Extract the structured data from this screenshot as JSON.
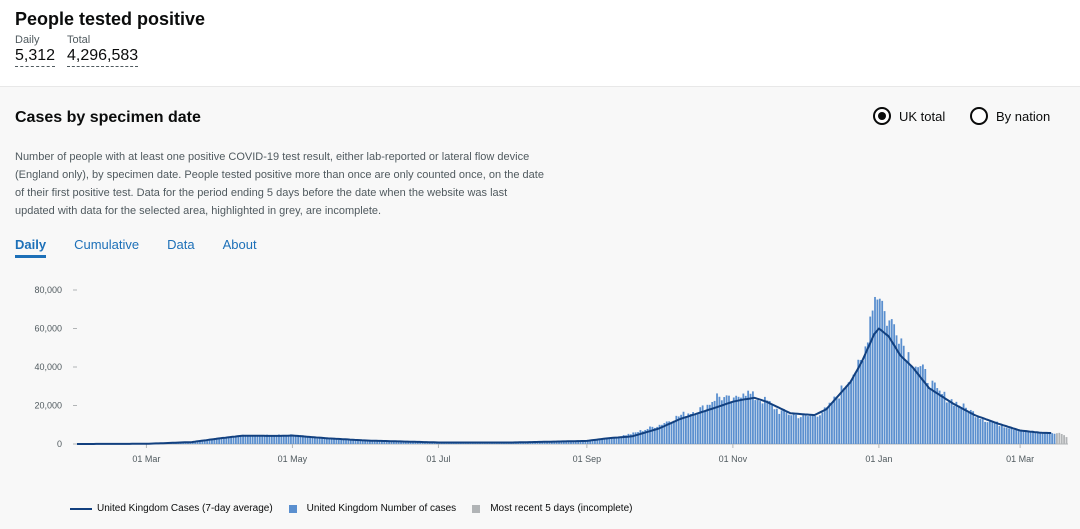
{
  "headline": {
    "title": "People tested positive",
    "daily_label": "Daily",
    "daily_value": "5,312",
    "total_label": "Total",
    "total_value": "4,296,583"
  },
  "card": {
    "title": "Cases by specimen date",
    "radios": [
      {
        "label": "UK total",
        "selected": true
      },
      {
        "label": "By nation",
        "selected": false
      }
    ],
    "description": "Number of people with at least one positive COVID-19 test result, either lab-reported or lateral flow device (England only), by specimen date. People tested positive more than once are only counted once, on the date of their first positive test. Data for the period ending 5 days before the date when the website was last updated with data for the selected area, highlighted in grey, are incomplete.",
    "tabs": [
      "Daily",
      "Cumulative",
      "Data",
      "About"
    ],
    "active_tab": "Daily"
  },
  "colors": {
    "bar": "#5a8fcf",
    "line": "#12407f",
    "incomplete": "#b1b4b6",
    "tab": "#1d70b8"
  },
  "chart_data": {
    "type": "bar",
    "x_start": "2020-02-01",
    "x_end": "2021-03-21",
    "ylim": [
      0,
      80000
    ],
    "y_ticks": [
      0,
      20000,
      40000,
      60000,
      80000
    ],
    "y_tick_labels": [
      "0",
      "20,000",
      "40,000",
      "60,000",
      "80,000"
    ],
    "x_ticks": [
      "2020-03-01",
      "2020-05-01",
      "2020-07-01",
      "2020-09-01",
      "2020-11-01",
      "2021-01-01",
      "2021-03-01"
    ],
    "x_tick_labels": [
      "01 Mar",
      "01 May",
      "01 Jul",
      "01 Sep",
      "01 Nov",
      "01 Jan",
      "01 Mar"
    ],
    "series": [
      {
        "name": "United Kingdom Number of cases",
        "points": [
          [
            "2020-02-01",
            0
          ],
          [
            "2020-03-01",
            50
          ],
          [
            "2020-03-15",
            700
          ],
          [
            "2020-03-25",
            1500
          ],
          [
            "2020-04-01",
            3000
          ],
          [
            "2020-04-10",
            4500
          ],
          [
            "2020-04-20",
            4400
          ],
          [
            "2020-05-01",
            4800
          ],
          [
            "2020-05-10",
            3200
          ],
          [
            "2020-05-25",
            2000
          ],
          [
            "2020-06-10",
            1200
          ],
          [
            "2020-07-01",
            800
          ],
          [
            "2020-08-01",
            900
          ],
          [
            "2020-08-20",
            1200
          ],
          [
            "2020-09-01",
            2000
          ],
          [
            "2020-09-10",
            3000
          ],
          [
            "2020-09-20",
            5500
          ],
          [
            "2020-10-01",
            10000
          ],
          [
            "2020-10-10",
            15000
          ],
          [
            "2020-10-20",
            19000
          ],
          [
            "2020-10-25",
            25000
          ],
          [
            "2020-11-01",
            22000
          ],
          [
            "2020-11-05",
            28000
          ],
          [
            "2020-11-10",
            24000
          ],
          [
            "2020-11-15",
            22000
          ],
          [
            "2020-11-20",
            17000
          ],
          [
            "2020-11-30",
            14000
          ],
          [
            "2020-12-05",
            15000
          ],
          [
            "2020-12-10",
            18000
          ],
          [
            "2020-12-15",
            26000
          ],
          [
            "2020-12-20",
            36000
          ],
          [
            "2020-12-25",
            42000
          ],
          [
            "2020-12-29",
            75000
          ],
          [
            "2021-01-01",
            80000
          ],
          [
            "2021-01-03",
            68000
          ],
          [
            "2021-01-05",
            63000
          ],
          [
            "2021-01-08",
            62000
          ],
          [
            "2021-01-12",
            48000
          ],
          [
            "2021-01-16",
            42000
          ],
          [
            "2021-01-20",
            36000
          ],
          [
            "2021-01-25",
            27000
          ],
          [
            "2021-02-01",
            22000
          ],
          [
            "2021-02-08",
            17000
          ],
          [
            "2021-02-15",
            12000
          ],
          [
            "2021-02-22",
            9500
          ],
          [
            "2021-03-01",
            7000
          ],
          [
            "2021-03-08",
            6000
          ],
          [
            "2021-03-15",
            5400
          ]
        ]
      },
      {
        "name": "United Kingdom Cases (7-day average)",
        "points": [
          [
            "2020-02-01",
            0
          ],
          [
            "2020-03-01",
            100
          ],
          [
            "2020-03-20",
            1000
          ],
          [
            "2020-04-01",
            3000
          ],
          [
            "2020-04-10",
            4300
          ],
          [
            "2020-04-25",
            4200
          ],
          [
            "2020-05-01",
            4400
          ],
          [
            "2020-05-15",
            3000
          ],
          [
            "2020-06-01",
            1800
          ],
          [
            "2020-07-01",
            800
          ],
          [
            "2020-08-01",
            800
          ],
          [
            "2020-09-01",
            1600
          ],
          [
            "2020-09-10",
            3000
          ],
          [
            "2020-09-20",
            4000
          ],
          [
            "2020-10-01",
            8000
          ],
          [
            "2020-10-10",
            13000
          ],
          [
            "2020-10-20",
            17000
          ],
          [
            "2020-10-25",
            19000
          ],
          [
            "2020-11-01",
            22000
          ],
          [
            "2020-11-05",
            23000
          ],
          [
            "2020-11-10",
            24000
          ],
          [
            "2020-11-15",
            22000
          ],
          [
            "2020-11-25",
            16000
          ],
          [
            "2020-12-05",
            15000
          ],
          [
            "2020-12-10",
            18000
          ],
          [
            "2020-12-15",
            25000
          ],
          [
            "2020-12-20",
            32000
          ],
          [
            "2020-12-25",
            43000
          ],
          [
            "2020-12-30",
            57000
          ],
          [
            "2021-01-01",
            60000
          ],
          [
            "2021-01-05",
            56000
          ],
          [
            "2021-01-10",
            46000
          ],
          [
            "2021-01-15",
            40000
          ],
          [
            "2021-01-22",
            29000
          ],
          [
            "2021-02-01",
            21000
          ],
          [
            "2021-02-10",
            15000
          ],
          [
            "2021-02-20",
            10500
          ],
          [
            "2021-03-01",
            7000
          ],
          [
            "2021-03-10",
            5800
          ],
          [
            "2021-03-14",
            5700
          ]
        ]
      },
      {
        "name": "Most recent 5 days (incomplete)",
        "points": [
          [
            "2021-03-16",
            5600
          ],
          [
            "2021-03-17",
            5800
          ],
          [
            "2021-03-18",
            5200
          ],
          [
            "2021-03-19",
            4600
          ],
          [
            "2021-03-20",
            3600
          ]
        ]
      }
    ]
  }
}
